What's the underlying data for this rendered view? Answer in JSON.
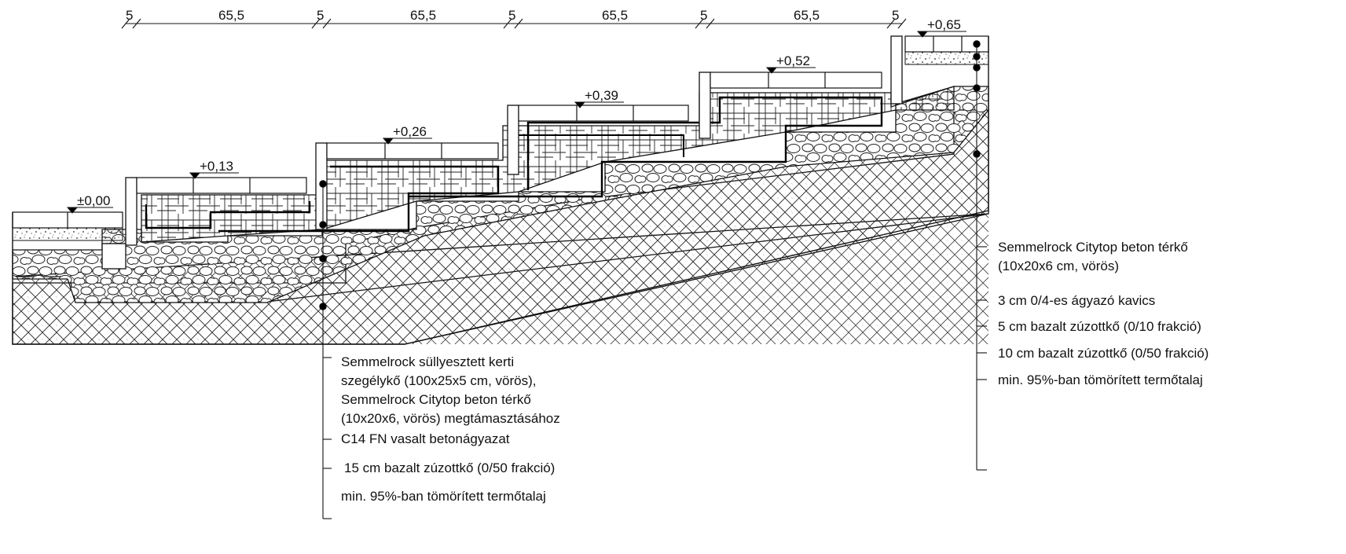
{
  "dimensions": [
    "5",
    "65,5",
    "5",
    "65,5",
    "5",
    "65,5",
    "5",
    "65,5",
    "5"
  ],
  "levels": [
    "±0,00",
    "+0,13",
    "+0,26",
    "+0,39",
    "+0,52",
    "+0,65"
  ],
  "left_callouts": [
    "Semmelrock süllyesztett kerti",
    "szegélykő (100x25x5 cm, vörös),",
    "Semmelrock Citytop beton térkő",
    "(10x20x6, vörös) megtámasztásához",
    "C14 FN vasalt betonágyazat",
    "15 cm bazalt zúzottkő (0/50 frakció)",
    "min. 95%-ban tömörített termőtalaj"
  ],
  "right_callouts": [
    "Semmelrock Citytop beton térkő",
    "(10x20x6 cm, vörös)",
    "3 cm 0/4-es ágyazó kavics",
    "5 cm bazalt zúzottkő (0/10 frakció)",
    "10 cm bazalt zúzottkő (0/50 frakció)",
    "min. 95%-ban tömörített termőtalaj"
  ],
  "colors": {
    "line": "#111111",
    "background": "#ffffff"
  }
}
